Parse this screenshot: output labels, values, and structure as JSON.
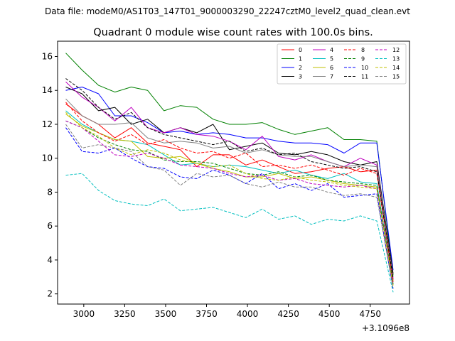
{
  "figure": {
    "suptitle": "Data file: modeM0/AS1T03_147T01_9000003290_22247cztM0_level2_quad_clean.evt"
  },
  "chart_data": {
    "type": "line",
    "title": "Quadrant 0 module wise count rates with 100.0s bins.",
    "xlabel": "",
    "ylabel": "",
    "x_offset_label": "+3.1096e8",
    "xlim": [
      2840,
      4990
    ],
    "ylim": [
      1.4,
      16.9
    ],
    "xticks": [
      3000,
      3250,
      3500,
      3750,
      4000,
      4250,
      4500,
      4750
    ],
    "xtick_labels": [
      "3000",
      "3250",
      "3500",
      "3750",
      "4000",
      "4250",
      "4500",
      "4750"
    ],
    "yticks": [
      2,
      4,
      6,
      8,
      10,
      12,
      14,
      16
    ],
    "ytick_labels": [
      "2",
      "4",
      "6",
      "8",
      "10",
      "12",
      "14",
      "16"
    ],
    "grid": false,
    "legend_position": "top-right",
    "x": [
      2890,
      2990,
      3090,
      3190,
      3290,
      3390,
      3490,
      3590,
      3690,
      3790,
      3890,
      3990,
      4090,
      4190,
      4290,
      4390,
      4490,
      4590,
      4690,
      4790,
      4890
    ],
    "series": [
      {
        "name": "0",
        "color": "#ff0000",
        "dash": "solid",
        "values": [
          13.2,
          12.5,
          12.0,
          11.2,
          11.8,
          10.9,
          10.7,
          10.5,
          9.5,
          10.2,
          10.2,
          9.6,
          9.9,
          9.5,
          9.1,
          9.2,
          9.4,
          9.5,
          9.2,
          9.3,
          2.8
        ]
      },
      {
        "name": "1",
        "color": "#008000",
        "dash": "solid",
        "values": [
          16.2,
          15.2,
          14.3,
          13.9,
          14.2,
          14.0,
          12.8,
          13.1,
          13.0,
          12.3,
          12.0,
          12.0,
          12.1,
          11.7,
          11.4,
          11.6,
          11.8,
          11.1,
          11.1,
          11.0,
          3.1
        ]
      },
      {
        "name": "2",
        "color": "#0000ff",
        "dash": "solid",
        "values": [
          14.0,
          14.2,
          13.8,
          12.5,
          12.5,
          12.1,
          11.5,
          11.6,
          11.4,
          11.5,
          11.4,
          11.2,
          11.2,
          11.0,
          10.9,
          10.9,
          10.8,
          10.3,
          10.9,
          10.9,
          3.4
        ]
      },
      {
        "name": "3",
        "color": "#000000",
        "dash": "solid",
        "values": [
          14.2,
          13.8,
          12.8,
          13.0,
          12.0,
          12.3,
          11.5,
          11.8,
          11.5,
          12.0,
          10.5,
          10.7,
          10.9,
          10.3,
          10.2,
          10.4,
          10.2,
          9.8,
          9.6,
          9.8,
          3.2
        ]
      },
      {
        "name": "4",
        "color": "#bf00bf",
        "dash": "solid",
        "values": [
          14.5,
          13.6,
          13.0,
          12.2,
          13.0,
          11.8,
          11.5,
          11.8,
          11.4,
          11.3,
          11.0,
          10.5,
          11.3,
          10.1,
          9.9,
          10.2,
          9.8,
          9.5,
          10.0,
          9.6,
          2.9
        ]
      },
      {
        "name": "5",
        "color": "#00bfbf",
        "dash": "solid",
        "values": [
          12.8,
          12.0,
          11.5,
          11.1,
          11.0,
          10.8,
          10.2,
          9.6,
          9.7,
          9.5,
          9.6,
          9.5,
          9.3,
          9.1,
          9.3,
          9.0,
          8.8,
          9.1,
          8.6,
          8.5,
          2.6
        ]
      },
      {
        "name": "6",
        "color": "#bfbf00",
        "dash": "solid",
        "values": [
          12.6,
          11.9,
          11.5,
          11.1,
          11.0,
          10.1,
          10.0,
          10.1,
          9.7,
          9.4,
          9.2,
          8.9,
          8.9,
          9.1,
          8.8,
          8.9,
          8.7,
          8.5,
          8.4,
          8.3,
          2.5
        ]
      },
      {
        "name": "7",
        "color": "#808080",
        "dash": "solid",
        "values": [
          13.5,
          12.5,
          12.0,
          12.0,
          12.1,
          11.2,
          10.9,
          11.0,
          10.9,
          10.6,
          10.7,
          10.3,
          10.5,
          10.2,
          10.1,
          10.1,
          9.8,
          9.5,
          9.6,
          9.5,
          3.0
        ]
      },
      {
        "name": "8",
        "color": "#ff0000",
        "dash": "dashed",
        "values": [
          13.3,
          12.2,
          11.5,
          11.0,
          11.4,
          10.8,
          11.1,
          10.6,
          10.3,
          10.4,
          10.0,
          10.3,
          9.5,
          9.6,
          9.4,
          9.6,
          9.3,
          9.0,
          9.4,
          9.1,
          2.7
        ]
      },
      {
        "name": "9",
        "color": "#008000",
        "dash": "dashed",
        "values": [
          12.2,
          11.8,
          11.2,
          10.8,
          10.5,
          10.4,
          9.9,
          9.8,
          9.8,
          9.7,
          9.4,
          9.1,
          9.0,
          9.2,
          8.9,
          9.0,
          8.7,
          8.6,
          8.5,
          8.4,
          2.6
        ]
      },
      {
        "name": "10",
        "color": "#0000ff",
        "dash": "dashed",
        "values": [
          11.8,
          10.4,
          10.3,
          10.6,
          10.0,
          9.5,
          9.4,
          8.9,
          8.8,
          9.3,
          9.0,
          8.5,
          9.1,
          8.2,
          8.5,
          8.1,
          8.5,
          7.7,
          7.8,
          7.9,
          2.3
        ]
      },
      {
        "name": "11",
        "color": "#000000",
        "dash": "dashed",
        "values": [
          14.7,
          14.0,
          13.0,
          12.3,
          12.7,
          11.8,
          11.4,
          11.2,
          11.0,
          10.8,
          11.0,
          10.4,
          10.6,
          10.2,
          10.3,
          9.8,
          9.6,
          9.4,
          9.5,
          9.2,
          2.9
        ]
      },
      {
        "name": "12",
        "color": "#bf00bf",
        "dash": "dashed",
        "values": [
          12.2,
          11.8,
          11.0,
          10.2,
          10.1,
          10.3,
          10.0,
          9.6,
          9.5,
          9.4,
          9.1,
          8.9,
          9.0,
          8.7,
          8.8,
          8.5,
          8.4,
          8.3,
          8.4,
          8.2,
          2.5
        ]
      },
      {
        "name": "13",
        "color": "#00bfbf",
        "dash": "dashed",
        "values": [
          9.0,
          9.1,
          8.1,
          7.5,
          7.3,
          7.2,
          7.6,
          6.9,
          7.0,
          7.1,
          6.8,
          6.5,
          7.0,
          6.4,
          6.6,
          6.1,
          6.4,
          6.3,
          6.6,
          6.3,
          2.1
        ]
      },
      {
        "name": "14",
        "color": "#bfbf00",
        "dash": "dashed",
        "values": [
          12.7,
          11.8,
          11.3,
          10.6,
          10.2,
          10.5,
          10.3,
          9.9,
          9.7,
          9.5,
          9.6,
          9.1,
          8.8,
          8.7,
          8.9,
          8.7,
          8.6,
          8.4,
          8.3,
          8.2,
          2.5
        ]
      },
      {
        "name": "15",
        "color": "#808080",
        "dash": "dashed",
        "values": [
          12.0,
          10.6,
          10.8,
          10.6,
          10.4,
          9.5,
          9.3,
          8.4,
          9.1,
          8.9,
          9.0,
          8.5,
          8.3,
          8.6,
          8.3,
          8.3,
          8.0,
          7.8,
          7.9,
          7.7,
          2.3
        ]
      }
    ]
  }
}
